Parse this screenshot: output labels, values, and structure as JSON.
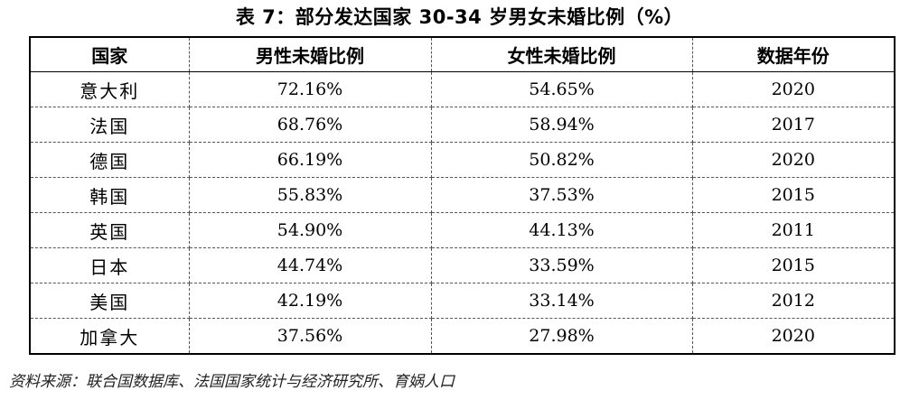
{
  "caption": "表 7：部分发达国家 30-34 岁男女未婚比例（%）",
  "table": {
    "headers": [
      "国家",
      "男性未婚比例",
      "女性未婚比例",
      "数据年份"
    ],
    "rows": [
      {
        "country": "意大利",
        "male": "72.16%",
        "female": "54.65%",
        "year": "2020"
      },
      {
        "country": "法国",
        "male": "68.76%",
        "female": "58.94%",
        "year": "2017"
      },
      {
        "country": "德国",
        "male": "66.19%",
        "female": "50.82%",
        "year": "2020"
      },
      {
        "country": "韩国",
        "male": "55.83%",
        "female": "37.53%",
        "year": "2015"
      },
      {
        "country": "英国",
        "male": "54.90%",
        "female": "44.13%",
        "year": "2011"
      },
      {
        "country": "日本",
        "male": "44.74%",
        "female": "33.59%",
        "year": "2015"
      },
      {
        "country": "美国",
        "male": "42.19%",
        "female": "33.14%",
        "year": "2012"
      },
      {
        "country": "加拿大",
        "male": "37.56%",
        "female": "27.98%",
        "year": "2020"
      }
    ]
  },
  "source": "资料来源：联合国数据库、法国国家统计与经济研究所、育娲人口"
}
